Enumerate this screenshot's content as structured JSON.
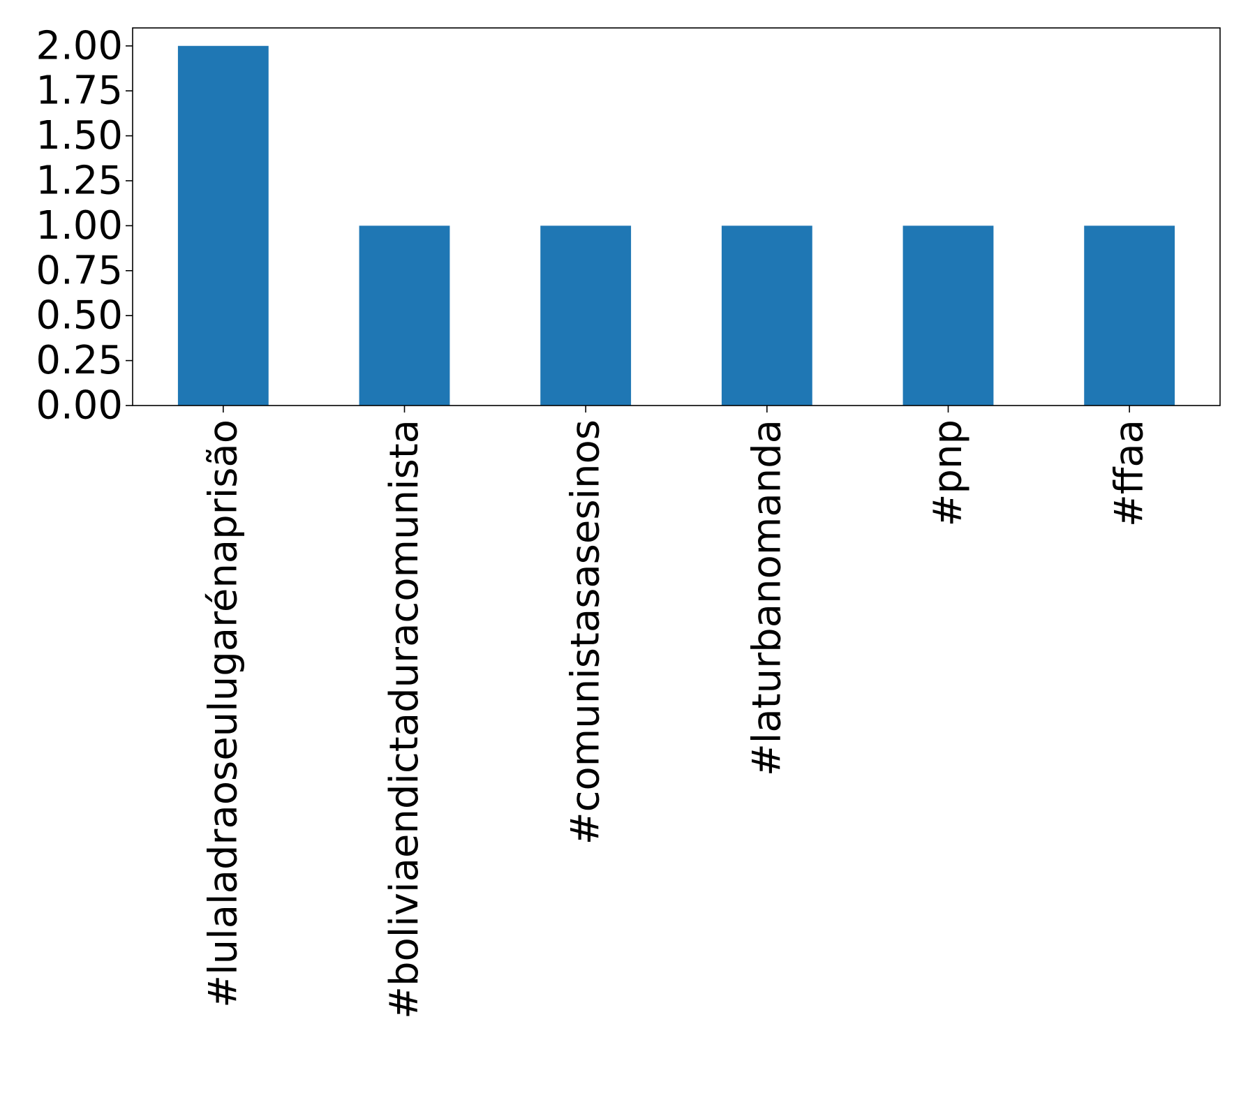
{
  "chart_data": {
    "type": "bar",
    "title": "",
    "xlabel": "",
    "ylabel": "",
    "categories": [
      "#lulaladraoseulugarénaprisão",
      "#boliviaendictaduracomunista",
      "#comunistasasesinos",
      "#laturbanomanda",
      "#pnp",
      "#ffaa"
    ],
    "values": [
      2,
      1,
      1,
      1,
      1,
      1
    ],
    "ylim": [
      0,
      2.1
    ],
    "yticks": [
      "0.00",
      "0.25",
      "0.50",
      "0.75",
      "1.00",
      "1.25",
      "1.50",
      "1.75",
      "2.00"
    ],
    "x_tick_rotation": "vertical",
    "grid": false,
    "legend": "none",
    "bar_color": "#1f77b4"
  }
}
